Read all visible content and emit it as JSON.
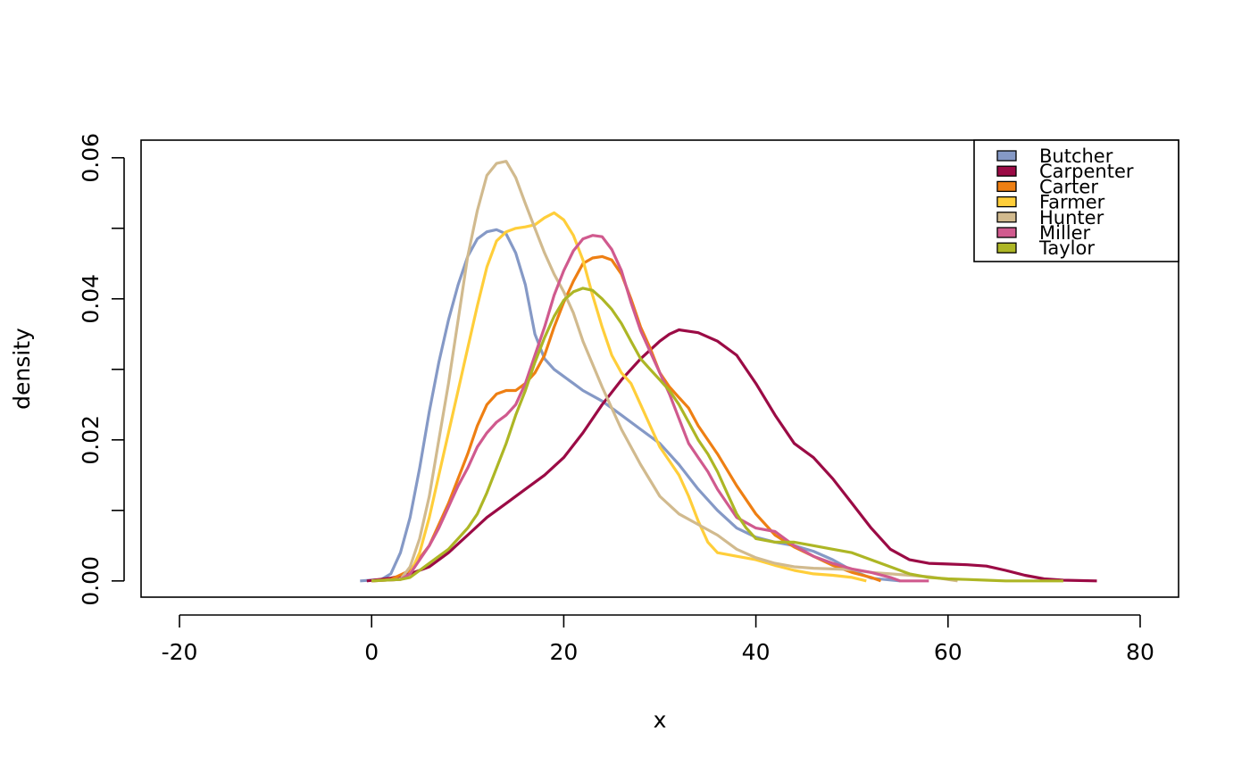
{
  "chart_data": {
    "type": "line",
    "title": "",
    "xlabel": "x",
    "ylabel": "density",
    "xlim": [
      -24,
      84
    ],
    "ylim": [
      -0.0023,
      0.0625
    ],
    "x_ticks": [
      -20,
      0,
      20,
      40,
      60,
      80
    ],
    "x_tick_labels": [
      "-20",
      "0",
      "20",
      "40",
      "60",
      "80"
    ],
    "y_ticks": [
      0,
      0.01,
      0.02,
      0.03,
      0.04,
      0.05,
      0.06
    ],
    "y_tick_labels": [
      "0.00",
      "",
      "0.02",
      "",
      "0.04",
      "",
      "0.06"
    ],
    "grid": false,
    "legend": {
      "position": "top-right"
    },
    "series": [
      {
        "name": "Butcher",
        "color": "#8599C6",
        "points": [
          [
            -1.2,
            0
          ],
          [
            1,
            0.0002
          ],
          [
            2,
            0.001
          ],
          [
            3,
            0.004
          ],
          [
            4,
            0.009
          ],
          [
            5,
            0.016
          ],
          [
            6,
            0.024
          ],
          [
            7,
            0.031
          ],
          [
            8,
            0.037
          ],
          [
            9,
            0.042
          ],
          [
            10,
            0.046
          ],
          [
            11,
            0.0485
          ],
          [
            12,
            0.0495
          ],
          [
            13,
            0.0498
          ],
          [
            14,
            0.0492
          ],
          [
            15,
            0.0465
          ],
          [
            16,
            0.042
          ],
          [
            17,
            0.035
          ],
          [
            18,
            0.0315
          ],
          [
            19,
            0.03
          ],
          [
            20,
            0.029
          ],
          [
            21,
            0.028
          ],
          [
            22,
            0.027
          ],
          [
            24,
            0.0255
          ],
          [
            26,
            0.0235
          ],
          [
            28,
            0.0215
          ],
          [
            30,
            0.0195
          ],
          [
            32,
            0.0165
          ],
          [
            34,
            0.013
          ],
          [
            36,
            0.01
          ],
          [
            38,
            0.0075
          ],
          [
            40,
            0.0062
          ],
          [
            42,
            0.0055
          ],
          [
            44,
            0.005
          ],
          [
            46,
            0.0042
          ],
          [
            48,
            0.003
          ],
          [
            50,
            0.0015
          ],
          [
            52,
            0.0004
          ],
          [
            55,
            0
          ]
        ]
      },
      {
        "name": "Carpenter",
        "color": "#9B0B45",
        "points": [
          [
            -0.5,
            0
          ],
          [
            2,
            0.0004
          ],
          [
            4,
            0.001
          ],
          [
            6,
            0.002
          ],
          [
            8,
            0.004
          ],
          [
            10,
            0.0065
          ],
          [
            12,
            0.009
          ],
          [
            14,
            0.011
          ],
          [
            16,
            0.013
          ],
          [
            18,
            0.015
          ],
          [
            20,
            0.0175
          ],
          [
            22,
            0.021
          ],
          [
            24,
            0.025
          ],
          [
            26,
            0.0285
          ],
          [
            28,
            0.0315
          ],
          [
            30,
            0.034
          ],
          [
            31,
            0.035
          ],
          [
            32,
            0.0356
          ],
          [
            34,
            0.0352
          ],
          [
            36,
            0.034
          ],
          [
            38,
            0.032
          ],
          [
            40,
            0.028
          ],
          [
            42,
            0.0235
          ],
          [
            44,
            0.0195
          ],
          [
            46,
            0.0175
          ],
          [
            48,
            0.0145
          ],
          [
            50,
            0.011
          ],
          [
            52,
            0.0075
          ],
          [
            54,
            0.0045
          ],
          [
            56,
            0.003
          ],
          [
            58,
            0.0025
          ],
          [
            60,
            0.0024
          ],
          [
            62,
            0.0023
          ],
          [
            64,
            0.0021
          ],
          [
            66,
            0.0015
          ],
          [
            68,
            0.0008
          ],
          [
            70,
            0.0003
          ],
          [
            72,
            0.0001
          ],
          [
            75.5,
            0
          ]
        ]
      },
      {
        "name": "Carter",
        "color": "#EE7F13",
        "points": [
          [
            0,
            0
          ],
          [
            2,
            0.0002
          ],
          [
            4,
            0.0015
          ],
          [
            6,
            0.005
          ],
          [
            8,
            0.011
          ],
          [
            10,
            0.018
          ],
          [
            11,
            0.022
          ],
          [
            12,
            0.025
          ],
          [
            13,
            0.0265
          ],
          [
            14,
            0.027
          ],
          [
            15,
            0.027
          ],
          [
            16,
            0.028
          ],
          [
            17,
            0.0295
          ],
          [
            18,
            0.032
          ],
          [
            19,
            0.036
          ],
          [
            20,
            0.0395
          ],
          [
            21,
            0.0425
          ],
          [
            22,
            0.045
          ],
          [
            23,
            0.0458
          ],
          [
            24,
            0.046
          ],
          [
            25,
            0.0455
          ],
          [
            26,
            0.0435
          ],
          [
            27,
            0.04
          ],
          [
            28,
            0.036
          ],
          [
            29,
            0.033
          ],
          [
            30,
            0.0295
          ],
          [
            31,
            0.0275
          ],
          [
            32,
            0.026
          ],
          [
            33,
            0.0245
          ],
          [
            34,
            0.022
          ],
          [
            36,
            0.018
          ],
          [
            38,
            0.0135
          ],
          [
            40,
            0.0095
          ],
          [
            42,
            0.0065
          ],
          [
            44,
            0.0048
          ],
          [
            46,
            0.0035
          ],
          [
            48,
            0.0022
          ],
          [
            50,
            0.0012
          ],
          [
            52,
            0.0005
          ],
          [
            53,
            0
          ]
        ]
      },
      {
        "name": "Farmer",
        "color": "#FFCE3A",
        "points": [
          [
            0,
            0
          ],
          [
            3,
            0.0002
          ],
          [
            4,
            0.001
          ],
          [
            5,
            0.004
          ],
          [
            6,
            0.009
          ],
          [
            7,
            0.015
          ],
          [
            8,
            0.021
          ],
          [
            9,
            0.027
          ],
          [
            10,
            0.033
          ],
          [
            11,
            0.039
          ],
          [
            12,
            0.0445
          ],
          [
            13,
            0.0482
          ],
          [
            14,
            0.0495
          ],
          [
            15,
            0.05
          ],
          [
            16,
            0.0502
          ],
          [
            17,
            0.0505
          ],
          [
            18,
            0.0515
          ],
          [
            19,
            0.0522
          ],
          [
            20,
            0.0512
          ],
          [
            21,
            0.049
          ],
          [
            22,
            0.0455
          ],
          [
            23,
            0.0405
          ],
          [
            24,
            0.036
          ],
          [
            25,
            0.032
          ],
          [
            26,
            0.0295
          ],
          [
            27,
            0.028
          ],
          [
            28,
            0.025
          ],
          [
            29,
            0.022
          ],
          [
            30,
            0.019
          ],
          [
            31,
            0.017
          ],
          [
            32,
            0.015
          ],
          [
            33,
            0.012
          ],
          [
            34,
            0.0085
          ],
          [
            35,
            0.0055
          ],
          [
            36,
            0.004
          ],
          [
            38,
            0.0035
          ],
          [
            40,
            0.003
          ],
          [
            42,
            0.0022
          ],
          [
            44,
            0.0015
          ],
          [
            46,
            0.001
          ],
          [
            48,
            0.0008
          ],
          [
            50,
            0.0005
          ],
          [
            51.5,
            0
          ]
        ]
      },
      {
        "name": "Hunter",
        "color": "#D1BA8E",
        "points": [
          [
            0,
            0
          ],
          [
            3,
            0.0002
          ],
          [
            4,
            0.002
          ],
          [
            5,
            0.006
          ],
          [
            6,
            0.012
          ],
          [
            7,
            0.02
          ],
          [
            8,
            0.028
          ],
          [
            9,
            0.037
          ],
          [
            10,
            0.046
          ],
          [
            11,
            0.0525
          ],
          [
            12,
            0.0575
          ],
          [
            13,
            0.0592
          ],
          [
            14,
            0.0595
          ],
          [
            15,
            0.0572
          ],
          [
            16,
            0.0535
          ],
          [
            17,
            0.05
          ],
          [
            18,
            0.0465
          ],
          [
            19,
            0.0435
          ],
          [
            20,
            0.041
          ],
          [
            21,
            0.038
          ],
          [
            22,
            0.034
          ],
          [
            24,
            0.0275
          ],
          [
            26,
            0.0215
          ],
          [
            28,
            0.0165
          ],
          [
            30,
            0.012
          ],
          [
            32,
            0.0095
          ],
          [
            34,
            0.008
          ],
          [
            36,
            0.0065
          ],
          [
            38,
            0.0045
          ],
          [
            40,
            0.0033
          ],
          [
            42,
            0.0025
          ],
          [
            44,
            0.002
          ],
          [
            46,
            0.0018
          ],
          [
            48,
            0.0017
          ],
          [
            50,
            0.0016
          ],
          [
            52,
            0.0012
          ],
          [
            54,
            0.001
          ],
          [
            56,
            0.0008
          ],
          [
            58,
            0.0006
          ],
          [
            61,
            0
          ]
        ]
      },
      {
        "name": "Miller",
        "color": "#D05A8E",
        "points": [
          [
            0,
            0
          ],
          [
            3,
            0.0002
          ],
          [
            4,
            0.001
          ],
          [
            5,
            0.003
          ],
          [
            6,
            0.005
          ],
          [
            7,
            0.0075
          ],
          [
            8,
            0.0105
          ],
          [
            9,
            0.0135
          ],
          [
            10,
            0.016
          ],
          [
            11,
            0.019
          ],
          [
            12,
            0.021
          ],
          [
            13,
            0.0225
          ],
          [
            14,
            0.0235
          ],
          [
            15,
            0.025
          ],
          [
            16,
            0.028
          ],
          [
            17,
            0.032
          ],
          [
            18,
            0.036
          ],
          [
            19,
            0.0405
          ],
          [
            20,
            0.044
          ],
          [
            21,
            0.0468
          ],
          [
            22,
            0.0485
          ],
          [
            23,
            0.049
          ],
          [
            24,
            0.0488
          ],
          [
            25,
            0.047
          ],
          [
            26,
            0.044
          ],
          [
            27,
            0.0395
          ],
          [
            28,
            0.0355
          ],
          [
            29,
            0.0325
          ],
          [
            30,
            0.0295
          ],
          [
            31,
            0.0265
          ],
          [
            32,
            0.023
          ],
          [
            33,
            0.0195
          ],
          [
            34,
            0.0175
          ],
          [
            35,
            0.0155
          ],
          [
            36,
            0.013
          ],
          [
            37,
            0.011
          ],
          [
            38,
            0.009
          ],
          [
            40,
            0.0075
          ],
          [
            42,
            0.007
          ],
          [
            44,
            0.005
          ],
          [
            46,
            0.0035
          ],
          [
            48,
            0.0025
          ],
          [
            50,
            0.0017
          ],
          [
            52,
            0.0012
          ],
          [
            54,
            0.0005
          ],
          [
            55,
            0
          ],
          [
            58,
            0
          ]
        ]
      },
      {
        "name": "Taylor",
        "color": "#ADB625",
        "points": [
          [
            0,
            0
          ],
          [
            3,
            0.0002
          ],
          [
            4,
            0.0005
          ],
          [
            5,
            0.0015
          ],
          [
            6,
            0.0025
          ],
          [
            7,
            0.0035
          ],
          [
            8,
            0.0045
          ],
          [
            9,
            0.006
          ],
          [
            10,
            0.0075
          ],
          [
            11,
            0.0095
          ],
          [
            12,
            0.0125
          ],
          [
            13,
            0.016
          ],
          [
            14,
            0.0195
          ],
          [
            15,
            0.0235
          ],
          [
            16,
            0.027
          ],
          [
            17,
            0.031
          ],
          [
            18,
            0.0345
          ],
          [
            19,
            0.0375
          ],
          [
            20,
            0.0398
          ],
          [
            21,
            0.041
          ],
          [
            22,
            0.0415
          ],
          [
            23,
            0.0412
          ],
          [
            24,
            0.04
          ],
          [
            25,
            0.0385
          ],
          [
            26,
            0.0365
          ],
          [
            27,
            0.034
          ],
          [
            28,
            0.0315
          ],
          [
            29,
            0.03
          ],
          [
            30,
            0.0285
          ],
          [
            31,
            0.027
          ],
          [
            32,
            0.025
          ],
          [
            33,
            0.0225
          ],
          [
            34,
            0.02
          ],
          [
            35,
            0.018
          ],
          [
            36,
            0.0155
          ],
          [
            37,
            0.0125
          ],
          [
            38,
            0.0095
          ],
          [
            39,
            0.0075
          ],
          [
            40,
            0.006
          ],
          [
            42,
            0.0055
          ],
          [
            44,
            0.0055
          ],
          [
            46,
            0.005
          ],
          [
            48,
            0.0045
          ],
          [
            50,
            0.004
          ],
          [
            52,
            0.003
          ],
          [
            54,
            0.002
          ],
          [
            56,
            0.001
          ],
          [
            58,
            0.0005
          ],
          [
            60,
            0.0003
          ],
          [
            62,
            0.0002
          ],
          [
            64,
            0.0001
          ],
          [
            66,
            0
          ],
          [
            72,
            0
          ]
        ]
      }
    ]
  }
}
